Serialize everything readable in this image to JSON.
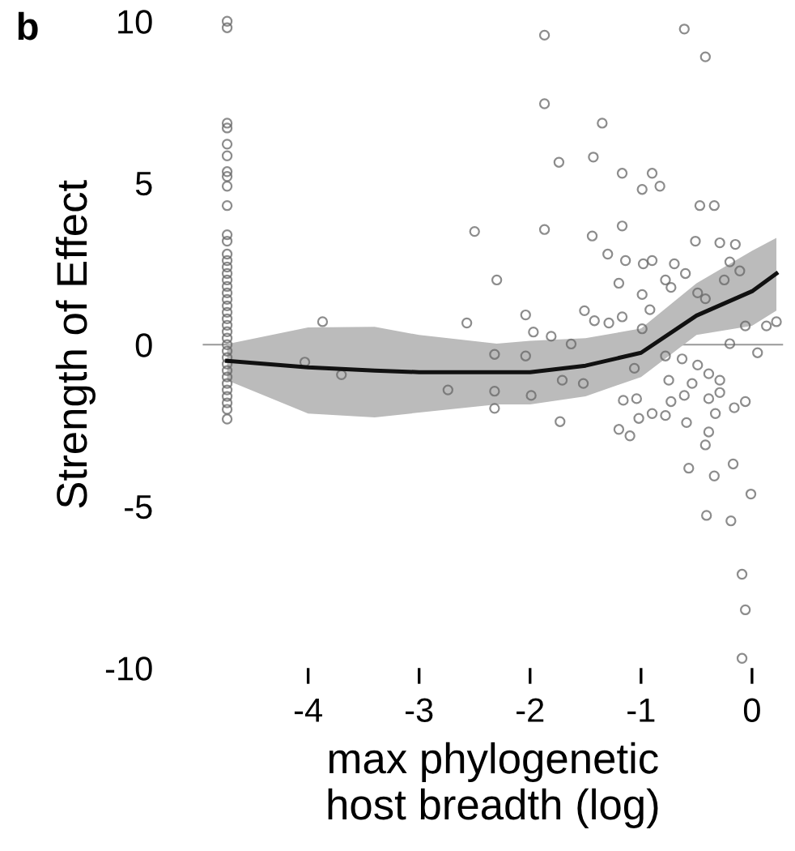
{
  "chart_data": {
    "type": "scatter",
    "xlabel": "max phylogenetic\nhost breadth (log)",
    "ylabel": "Strength of Effect",
    "annotations": [
      "b"
    ],
    "xlim": [
      -4.95,
      0.28
    ],
    "ylim": [
      -10,
      10
    ],
    "xticks": [
      -4,
      -3,
      -2,
      -1,
      0
    ],
    "yticks": [
      -10,
      -5,
      0,
      5,
      10
    ],
    "grid": false,
    "marker": "circle",
    "ref_lines": [
      {
        "axis": "y",
        "value": 0,
        "color": "#999999"
      }
    ],
    "series": [
      {
        "color": "#666666",
        "x": [
          -4.73,
          -4.73,
          -4.73,
          -4.73,
          -4.73,
          -4.73,
          -4.73,
          -4.73,
          -4.73,
          -4.73,
          -4.73,
          -4.73,
          -4.73,
          -4.73,
          -4.73,
          -4.73,
          -4.73,
          -4.73,
          -4.73,
          -4.73,
          -4.73,
          -4.73,
          -4.73,
          -4.73,
          -4.73,
          -4.73,
          -4.73,
          -4.73,
          -4.73,
          -4.73,
          -4.73,
          -4.73,
          -4.73,
          -4.73,
          -4.73,
          -4.73,
          -4.73,
          -4.73,
          -3.87,
          -4.03,
          -3.7,
          -2.5,
          -2.3,
          -2.57,
          -2.32,
          -2.74,
          -2.32,
          -2.32,
          -1.87,
          -0.61,
          -0.42,
          -1.87,
          -1.35,
          -1.74,
          -1.43,
          -1.17,
          -0.9,
          -0.99,
          -0.83,
          -1.87,
          -1.44,
          -0.47,
          -0.34,
          -1.17,
          -1.3,
          -1.14,
          -0.98,
          -0.9,
          -0.7,
          -0.51,
          -0.29,
          -0.15,
          -0.2,
          -1.2,
          -0.99,
          -0.78,
          -0.73,
          -0.6,
          -0.49,
          -0.42,
          -0.25,
          -0.11,
          -2.04,
          -1.97,
          -1.51,
          -1.42,
          -1.29,
          -1.17,
          -0.92,
          -1.81,
          -1.63,
          -0.99,
          -0.06,
          0.13,
          0.22,
          -0.2,
          0.05,
          -2.04,
          -1.99,
          -1.71,
          -1.52,
          -1.73,
          -1.06,
          -0.78,
          -0.63,
          -0.49,
          -0.39,
          -0.75,
          -0.54,
          -0.29,
          -1.16,
          -1.04,
          -0.73,
          -0.61,
          -0.39,
          -0.29,
          -0.16,
          -0.06,
          -1.02,
          -0.9,
          -0.78,
          -0.59,
          -0.33,
          -1.2,
          -1.1,
          -0.39,
          -0.42,
          -0.57,
          -0.34,
          -0.17,
          -0.01,
          -0.41,
          -0.19,
          -0.09,
          -0.06,
          -0.09
        ],
        "values": [
          10.0,
          9.8,
          6.85,
          6.7,
          6.2,
          5.84,
          5.35,
          5.2,
          4.9,
          4.3,
          3.4,
          3.2,
          2.8,
          2.6,
          2.4,
          2.2,
          2.0,
          1.8,
          1.6,
          1.4,
          1.2,
          1.0,
          0.8,
          0.6,
          0.4,
          0.2,
          0,
          -0.2,
          -0.4,
          -0.6,
          -0.8,
          -1.0,
          -1.2,
          -1.4,
          -1.6,
          -1.8,
          -2.0,
          -2.3,
          0.71,
          -0.54,
          -0.93,
          3.5,
          2.0,
          0.67,
          -0.3,
          -1.4,
          -1.44,
          -1.97,
          9.57,
          9.76,
          8.9,
          7.45,
          6.85,
          5.64,
          5.8,
          5.3,
          5.3,
          4.8,
          4.9,
          3.56,
          3.36,
          4.3,
          4.3,
          3.67,
          2.8,
          2.6,
          2.5,
          2.6,
          2.5,
          3.2,
          3.15,
          3.1,
          2.56,
          1.9,
          1.55,
          2.0,
          1.77,
          2.2,
          1.6,
          1.42,
          2.0,
          2.28,
          0.92,
          0.39,
          1.05,
          0.74,
          0.67,
          0.86,
          1.08,
          0.26,
          0.02,
          0.49,
          0.58,
          0.58,
          0.71,
          0.03,
          -0.25,
          -0.35,
          -1.57,
          -1.1,
          -1.2,
          -2.38,
          -0.73,
          -0.35,
          -0.44,
          -0.63,
          -0.9,
          -1.1,
          -1.2,
          -1.1,
          -1.72,
          -1.67,
          -1.76,
          -1.57,
          -1.67,
          -1.48,
          -1.95,
          -1.76,
          -2.28,
          -2.13,
          -2.19,
          -2.41,
          -2.13,
          -2.62,
          -2.82,
          -2.7,
          -3.1,
          -3.82,
          -4.06,
          -3.69,
          -4.62,
          -5.28,
          -5.45,
          -7.1,
          -8.2,
          -9.7
        ]
      },
      {
        "type": "line",
        "color": "#111111",
        "marker": "none",
        "line_style": "solid",
        "x": [
          -4.73,
          -4.0,
          -3.4,
          -3.0,
          -2.3,
          -2.0,
          -1.5,
          -1.0,
          -0.5,
          0.0,
          0.22
        ],
        "values": [
          -0.5,
          -0.7,
          -0.8,
          -0.85,
          -0.85,
          -0.85,
          -0.65,
          -0.25,
          0.9,
          1.65,
          2.2
        ],
        "lower": [
          -1.1,
          -2.13,
          -2.25,
          -2.1,
          -1.85,
          -1.85,
          -1.6,
          -1.0,
          0.3,
          0.58,
          1.05
        ],
        "upper": [
          0.02,
          0.53,
          0.55,
          0.3,
          0.03,
          0.12,
          0.2,
          0.5,
          1.9,
          2.9,
          3.3
        ]
      }
    ]
  }
}
